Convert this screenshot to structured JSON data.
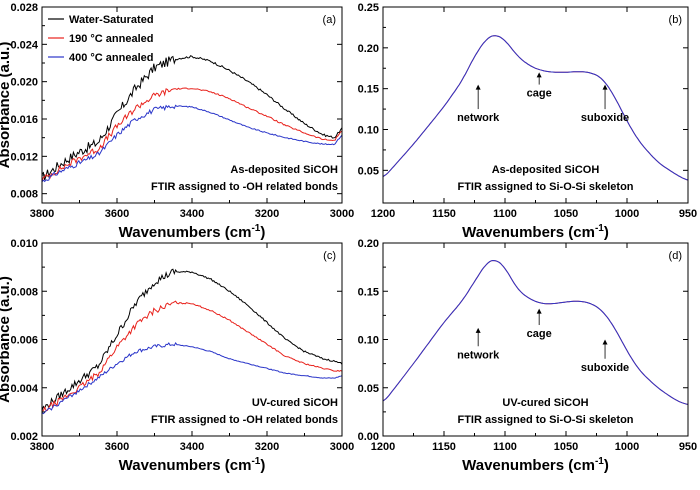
{
  "chart_data": [
    {
      "id": "a",
      "type": "line",
      "panel_label": "(a)",
      "xlabel": "Wavenumbers (cm",
      "xlabel_sup": "-1",
      "xlabel_end": ")",
      "ylabel": "Absorbance (a.u.)",
      "xlim": [
        3800,
        3000
      ],
      "ylim": [
        0.007,
        0.028
      ],
      "xticks": [
        3800,
        3600,
        3400,
        3200,
        3000
      ],
      "yticks": [
        0.008,
        0.012,
        0.016,
        0.02,
        0.024,
        0.028
      ],
      "ytick_decimals": 3,
      "legend": true,
      "annotations": [
        "As-deposited SiCOH",
        "FTIR assigned to -OH related bonds"
      ],
      "annotation_pos": "bottom-right",
      "series": [
        {
          "name": "Water-Saturated",
          "color": "#000000",
          "noise": 0.9,
          "x": [
            3800,
            3750,
            3700,
            3650,
            3600,
            3550,
            3500,
            3450,
            3400,
            3350,
            3300,
            3250,
            3200,
            3150,
            3100,
            3050,
            3020,
            3000
          ],
          "y": [
            0.0097,
            0.0112,
            0.0125,
            0.0135,
            0.0165,
            0.0193,
            0.0215,
            0.0224,
            0.0227,
            0.0222,
            0.0212,
            0.02,
            0.0186,
            0.017,
            0.0155,
            0.0143,
            0.014,
            0.015
          ]
        },
        {
          "name": "190 °C annealed",
          "color": "#e8221c",
          "noise": 0.6,
          "x": [
            3800,
            3750,
            3700,
            3650,
            3600,
            3550,
            3500,
            3450,
            3400,
            3350,
            3300,
            3250,
            3200,
            3150,
            3100,
            3050,
            3020,
            3000
          ],
          "y": [
            0.0095,
            0.0107,
            0.0118,
            0.0128,
            0.0152,
            0.0172,
            0.0185,
            0.0192,
            0.0193,
            0.0189,
            0.0182,
            0.0172,
            0.0163,
            0.0153,
            0.0145,
            0.0138,
            0.0137,
            0.0148
          ]
        },
        {
          "name": "400 °C annealed",
          "color": "#2a35c9",
          "noise": 0.45,
          "x": [
            3800,
            3750,
            3700,
            3650,
            3600,
            3550,
            3500,
            3450,
            3400,
            3350,
            3300,
            3250,
            3200,
            3150,
            3100,
            3050,
            3020,
            3000
          ],
          "y": [
            0.0093,
            0.0104,
            0.0113,
            0.0122,
            0.0143,
            0.016,
            0.017,
            0.0174,
            0.0173,
            0.0167,
            0.0159,
            0.0151,
            0.0145,
            0.014,
            0.0136,
            0.0133,
            0.0133,
            0.0143
          ]
        }
      ]
    },
    {
      "id": "b",
      "type": "line",
      "panel_label": "(b)",
      "xlabel": "Wavenumbers (cm",
      "xlabel_sup": "-1",
      "xlabel_end": ")",
      "ylabel": "",
      "xlim": [
        1200,
        950
      ],
      "ylim": [
        0.01,
        0.25
      ],
      "xticks": [
        1200,
        1150,
        1100,
        1050,
        1000,
        950
      ],
      "yticks": [
        0.05,
        0.1,
        0.15,
        0.2,
        0.25
      ],
      "ytick_decimals": 2,
      "legend": false,
      "annotations": [
        "As-deposited SiCOH",
        "FTIR assigned to Si-O-Si skeleton"
      ],
      "annotation_pos": "bottom-center",
      "labels": [
        {
          "text": "network",
          "x": 1122,
          "y_arrow_top": 0.155,
          "y_arrow_bottom": 0.125
        },
        {
          "text": "cage",
          "x": 1072,
          "y_arrow_top": 0.17,
          "y_arrow_bottom": 0.155
        },
        {
          "text": "suboxide",
          "x": 1018,
          "y_arrow_top": 0.155,
          "y_arrow_bottom": 0.125
        }
      ],
      "series": [
        {
          "name": "Water-Saturated",
          "color": "#e8221c",
          "noise": 0,
          "x": [
            1200,
            1175,
            1150,
            1135,
            1125,
            1115,
            1108,
            1100,
            1090,
            1080,
            1070,
            1060,
            1050,
            1040,
            1030,
            1020,
            1010,
            1000,
            990,
            975,
            960,
            950
          ],
          "y": [
            0.04,
            0.082,
            0.128,
            0.16,
            0.19,
            0.212,
            0.217,
            0.21,
            0.19,
            0.178,
            0.172,
            0.17,
            0.17,
            0.171,
            0.17,
            0.163,
            0.14,
            0.11,
            0.085,
            0.06,
            0.045,
            0.037
          ]
        },
        {
          "name": "400 °C annealed",
          "color": "#2a35c9",
          "noise": 0,
          "x": [
            1200,
            1175,
            1150,
            1135,
            1125,
            1115,
            1108,
            1100,
            1090,
            1080,
            1070,
            1060,
            1050,
            1040,
            1030,
            1020,
            1010,
            1000,
            990,
            975,
            960,
            950
          ],
          "y": [
            0.04,
            0.082,
            0.128,
            0.16,
            0.19,
            0.212,
            0.217,
            0.21,
            0.19,
            0.178,
            0.172,
            0.17,
            0.17,
            0.171,
            0.17,
            0.163,
            0.14,
            0.11,
            0.085,
            0.06,
            0.045,
            0.037
          ]
        }
      ]
    },
    {
      "id": "c",
      "type": "line",
      "panel_label": "(c)",
      "xlabel": "Wavenumbers (cm",
      "xlabel_sup": "-1",
      "xlabel_end": ")",
      "ylabel": "Absorbance (a.u.)",
      "xlim": [
        3800,
        3000
      ],
      "ylim": [
        0.002,
        0.01
      ],
      "xticks": [
        3800,
        3600,
        3400,
        3200,
        3000
      ],
      "yticks": [
        0.002,
        0.004,
        0.006,
        0.008,
        0.01
      ],
      "ytick_decimals": 3,
      "legend": false,
      "annotations": [
        "UV-cured SiCOH",
        "FTIR assigned to -OH related bonds"
      ],
      "annotation_pos": "bottom-right",
      "series": [
        {
          "name": "Water-Saturated",
          "color": "#000000",
          "noise": 0.7,
          "x": [
            3800,
            3750,
            3700,
            3650,
            3600,
            3550,
            3500,
            3450,
            3400,
            3350,
            3300,
            3250,
            3200,
            3150,
            3100,
            3050,
            3020,
            3000
          ],
          "y": [
            0.0031,
            0.0037,
            0.0043,
            0.0049,
            0.0062,
            0.0075,
            0.0084,
            0.0088,
            0.0088,
            0.0085,
            0.008,
            0.0074,
            0.0067,
            0.006,
            0.0055,
            0.0052,
            0.0051,
            0.005
          ]
        },
        {
          "name": "190 °C annealed",
          "color": "#e8221c",
          "noise": 0.55,
          "x": [
            3800,
            3750,
            3700,
            3650,
            3600,
            3550,
            3500,
            3450,
            3400,
            3350,
            3300,
            3250,
            3200,
            3150,
            3100,
            3050,
            3020,
            3000
          ],
          "y": [
            0.003,
            0.0035,
            0.004,
            0.0046,
            0.0057,
            0.0066,
            0.0072,
            0.0075,
            0.0075,
            0.0072,
            0.0068,
            0.0063,
            0.0058,
            0.0053,
            0.005,
            0.0048,
            0.0047,
            0.0047
          ]
        },
        {
          "name": "400 °C annealed",
          "color": "#2a35c9",
          "noise": 0.35,
          "x": [
            3800,
            3750,
            3700,
            3650,
            3600,
            3550,
            3500,
            3450,
            3400,
            3350,
            3300,
            3250,
            3200,
            3150,
            3100,
            3050,
            3020,
            3000
          ],
          "y": [
            0.0029,
            0.0034,
            0.0039,
            0.0044,
            0.005,
            0.0055,
            0.0057,
            0.0058,
            0.0057,
            0.0055,
            0.0052,
            0.005,
            0.0048,
            0.0046,
            0.0045,
            0.0044,
            0.0044,
            0.0045
          ]
        }
      ]
    },
    {
      "id": "d",
      "type": "line",
      "panel_label": "(d)",
      "xlabel": "Wavenumbers (cm",
      "xlabel_sup": "-1",
      "xlabel_end": ")",
      "ylabel": "",
      "xlim": [
        1200,
        950
      ],
      "ylim": [
        0.0,
        0.2
      ],
      "xticks": [
        1200,
        1150,
        1100,
        1050,
        1000,
        950
      ],
      "yticks": [
        0.0,
        0.05,
        0.1,
        0.15,
        0.2
      ],
      "ytick_decimals": 2,
      "legend": false,
      "annotations": [
        "UV-cured SiCOH",
        "FTIR assigned to Si-O-Si skeleton"
      ],
      "annotation_pos": "bottom-center",
      "labels": [
        {
          "text": "network",
          "x": 1122,
          "y_arrow_top": 0.112,
          "y_arrow_bottom": 0.093
        },
        {
          "text": "cage",
          "x": 1072,
          "y_arrow_top": 0.132,
          "y_arrow_bottom": 0.115
        },
        {
          "text": "suboxide",
          "x": 1018,
          "y_arrow_top": 0.1,
          "y_arrow_bottom": 0.08
        }
      ],
      "series": [
        {
          "name": "Water-Saturated",
          "color": "#e8221c",
          "noise": 0,
          "x": [
            1200,
            1175,
            1150,
            1135,
            1125,
            1115,
            1108,
            1100,
            1090,
            1080,
            1070,
            1060,
            1050,
            1040,
            1030,
            1020,
            1010,
            1000,
            990,
            975,
            960,
            950
          ],
          "y": [
            0.034,
            0.075,
            0.118,
            0.14,
            0.16,
            0.18,
            0.184,
            0.175,
            0.152,
            0.142,
            0.137,
            0.137,
            0.139,
            0.14,
            0.138,
            0.13,
            0.112,
            0.088,
            0.068,
            0.05,
            0.037,
            0.032
          ]
        },
        {
          "name": "400 °C annealed",
          "color": "#2a35c9",
          "noise": 0,
          "x": [
            1200,
            1175,
            1150,
            1135,
            1125,
            1115,
            1108,
            1100,
            1090,
            1080,
            1070,
            1060,
            1050,
            1040,
            1030,
            1020,
            1010,
            1000,
            990,
            975,
            960,
            950
          ],
          "y": [
            0.034,
            0.075,
            0.118,
            0.14,
            0.16,
            0.18,
            0.184,
            0.175,
            0.152,
            0.142,
            0.137,
            0.137,
            0.139,
            0.14,
            0.138,
            0.13,
            0.112,
            0.088,
            0.068,
            0.05,
            0.037,
            0.032
          ]
        }
      ]
    }
  ]
}
